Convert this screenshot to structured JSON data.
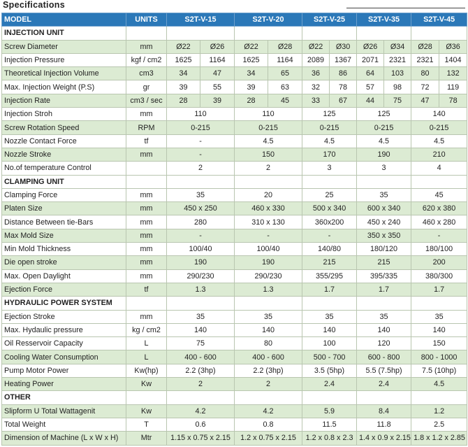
{
  "title": "Specifications",
  "header": {
    "model": "MODEL",
    "units": "UNITS",
    "models": [
      "S2T-V-15",
      "S2T-V-20",
      "S2T-V-25",
      "S2T-V-35",
      "S2T-V-45"
    ]
  },
  "rows": [
    {
      "section": "INJECTION UNIT"
    },
    {
      "label": "Screw Diameter",
      "unit": "mm",
      "values": [
        "Ø22",
        "Ø26",
        "Ø22",
        "Ø28",
        "Ø22",
        "Ø30",
        "Ø26",
        "Ø34",
        "Ø28",
        "Ø36"
      ]
    },
    {
      "label": "Injection Pressure",
      "unit": "kgf / cm2",
      "values": [
        "1625",
        "1164",
        "1625",
        "1164",
        "2089",
        "1367",
        "2071",
        "2321",
        "2321",
        "1404"
      ]
    },
    {
      "label": "Theoretical Injection Volume",
      "unit": "cm3",
      "values": [
        "34",
        "47",
        "34",
        "65",
        "36",
        "86",
        "64",
        "103",
        "80",
        "132"
      ]
    },
    {
      "label": "Max. Injection Weight (P.S)",
      "unit": "gr",
      "values": [
        "39",
        "55",
        "39",
        "63",
        "32",
        "78",
        "57",
        "98",
        "72",
        "119"
      ]
    },
    {
      "label": "Injection Rate",
      "unit": "cm3 / sec",
      "values": [
        "28",
        "39",
        "28",
        "45",
        "33",
        "67",
        "44",
        "75",
        "47",
        "78"
      ]
    },
    {
      "label": "Injection Stroh",
      "unit": "mm",
      "values": [
        "110",
        "110",
        "125",
        "125",
        "140"
      ]
    },
    {
      "label": "Screw Rotation Speed",
      "unit": "RPM",
      "values": [
        "0-215",
        "0-215",
        "0-215",
        "0-215",
        "0-215"
      ]
    },
    {
      "label": "Nozzle Contact Force",
      "unit": "tf",
      "values": [
        "-",
        "4.5",
        "4.5",
        "4.5",
        "4.5"
      ]
    },
    {
      "label": "Nozzle Stroke",
      "unit": "mm",
      "values": [
        "-",
        "150",
        "170",
        "190",
        "210"
      ]
    },
    {
      "label": "No.of temperature Control",
      "values": [
        "2",
        "2",
        "3",
        "3",
        "4"
      ]
    },
    {
      "section": "CLAMPING UNIT"
    },
    {
      "label": "Clamping Force",
      "unit": "mm",
      "values": [
        "35",
        "20",
        "25",
        "35",
        "45"
      ]
    },
    {
      "label": "Platen Size",
      "unit": "mm",
      "values": [
        "450 x 250",
        "460 x 330",
        "500 x 340",
        "600 x 340",
        "620 x 380"
      ]
    },
    {
      "label": "Distance Between tie-Bars",
      "unit": "mm",
      "values": [
        "280",
        "310 x 130",
        "360x200",
        "450 x 240",
        "460 x 280"
      ]
    },
    {
      "label": "Max Mold Size",
      "unit": "mm",
      "values": [
        "-",
        "-",
        "-",
        "350 x 350",
        "-"
      ]
    },
    {
      "label": "Min Mold Thickness",
      "unit": "mm",
      "values": [
        "100/40",
        "100/40",
        "140/80",
        "180/120",
        "180/100"
      ]
    },
    {
      "label": "Die open stroke",
      "unit": "mm",
      "values": [
        "190",
        "190",
        "215",
        "215",
        "200"
      ]
    },
    {
      "label": "Max. Open Daylight",
      "unit": "mm",
      "values": [
        "290/230",
        "290/230",
        "355/295",
        "395/335",
        "380/300"
      ]
    },
    {
      "label": "Ejection Force",
      "unit": "tf",
      "values": [
        "1.3",
        "1.3",
        "1.7",
        "1.7",
        "1.7"
      ]
    },
    {
      "section": "HYDRAULIC POWER SYSTEM"
    },
    {
      "label": "Ejection Stroke",
      "unit": "mm",
      "values": [
        "35",
        "35",
        "35",
        "35",
        "35"
      ]
    },
    {
      "label": "Max. Hydaulic pressure",
      "unit": "kg / cm2",
      "values": [
        "140",
        "140",
        "140",
        "140",
        "140"
      ]
    },
    {
      "label": "Oil Resservoir Capacity",
      "unit": "L",
      "values": [
        "75",
        "80",
        "100",
        "120",
        "150"
      ]
    },
    {
      "label": "Cooling Water Consumption",
      "unit": "L",
      "values": [
        "400 - 600",
        "400 - 600",
        "500 - 700",
        "600 - 800",
        "800 - 1000"
      ]
    },
    {
      "label": "Pump Motor Power",
      "unit": "Kw(hp)",
      "values": [
        "2.2 (3hp)",
        "2.2 (3hp)",
        "3.5 (5hp)",
        "5.5 (7.5hp)",
        "7.5 (10hp)"
      ]
    },
    {
      "label": "Heating Power",
      "unit": "Kw",
      "values": [
        "2",
        "2",
        "2.4",
        "2.4",
        "4.5"
      ]
    },
    {
      "section": "OTHER"
    },
    {
      "label": "Slipform U Total Wattagenit",
      "unit": "Kw",
      "values": [
        "4.2",
        "4.2",
        "5.9",
        "8.4",
        "1.2"
      ]
    },
    {
      "label": "Total Weight",
      "unit": "T",
      "values": [
        "0.6",
        "0.8",
        "11.5",
        "11.8",
        "2.5"
      ]
    },
    {
      "label": "Dimension of Machine (L x W x H)",
      "unit": "Mtr",
      "values": [
        "1.15 x 0.75 x 2.15",
        "1.2 x 0.75 x 2.15",
        "1.2 x 0.8 x 2.3",
        "1.4 x 0.9 x 2.15",
        "1.8 x 1.2 x 2.85"
      ]
    }
  ]
}
